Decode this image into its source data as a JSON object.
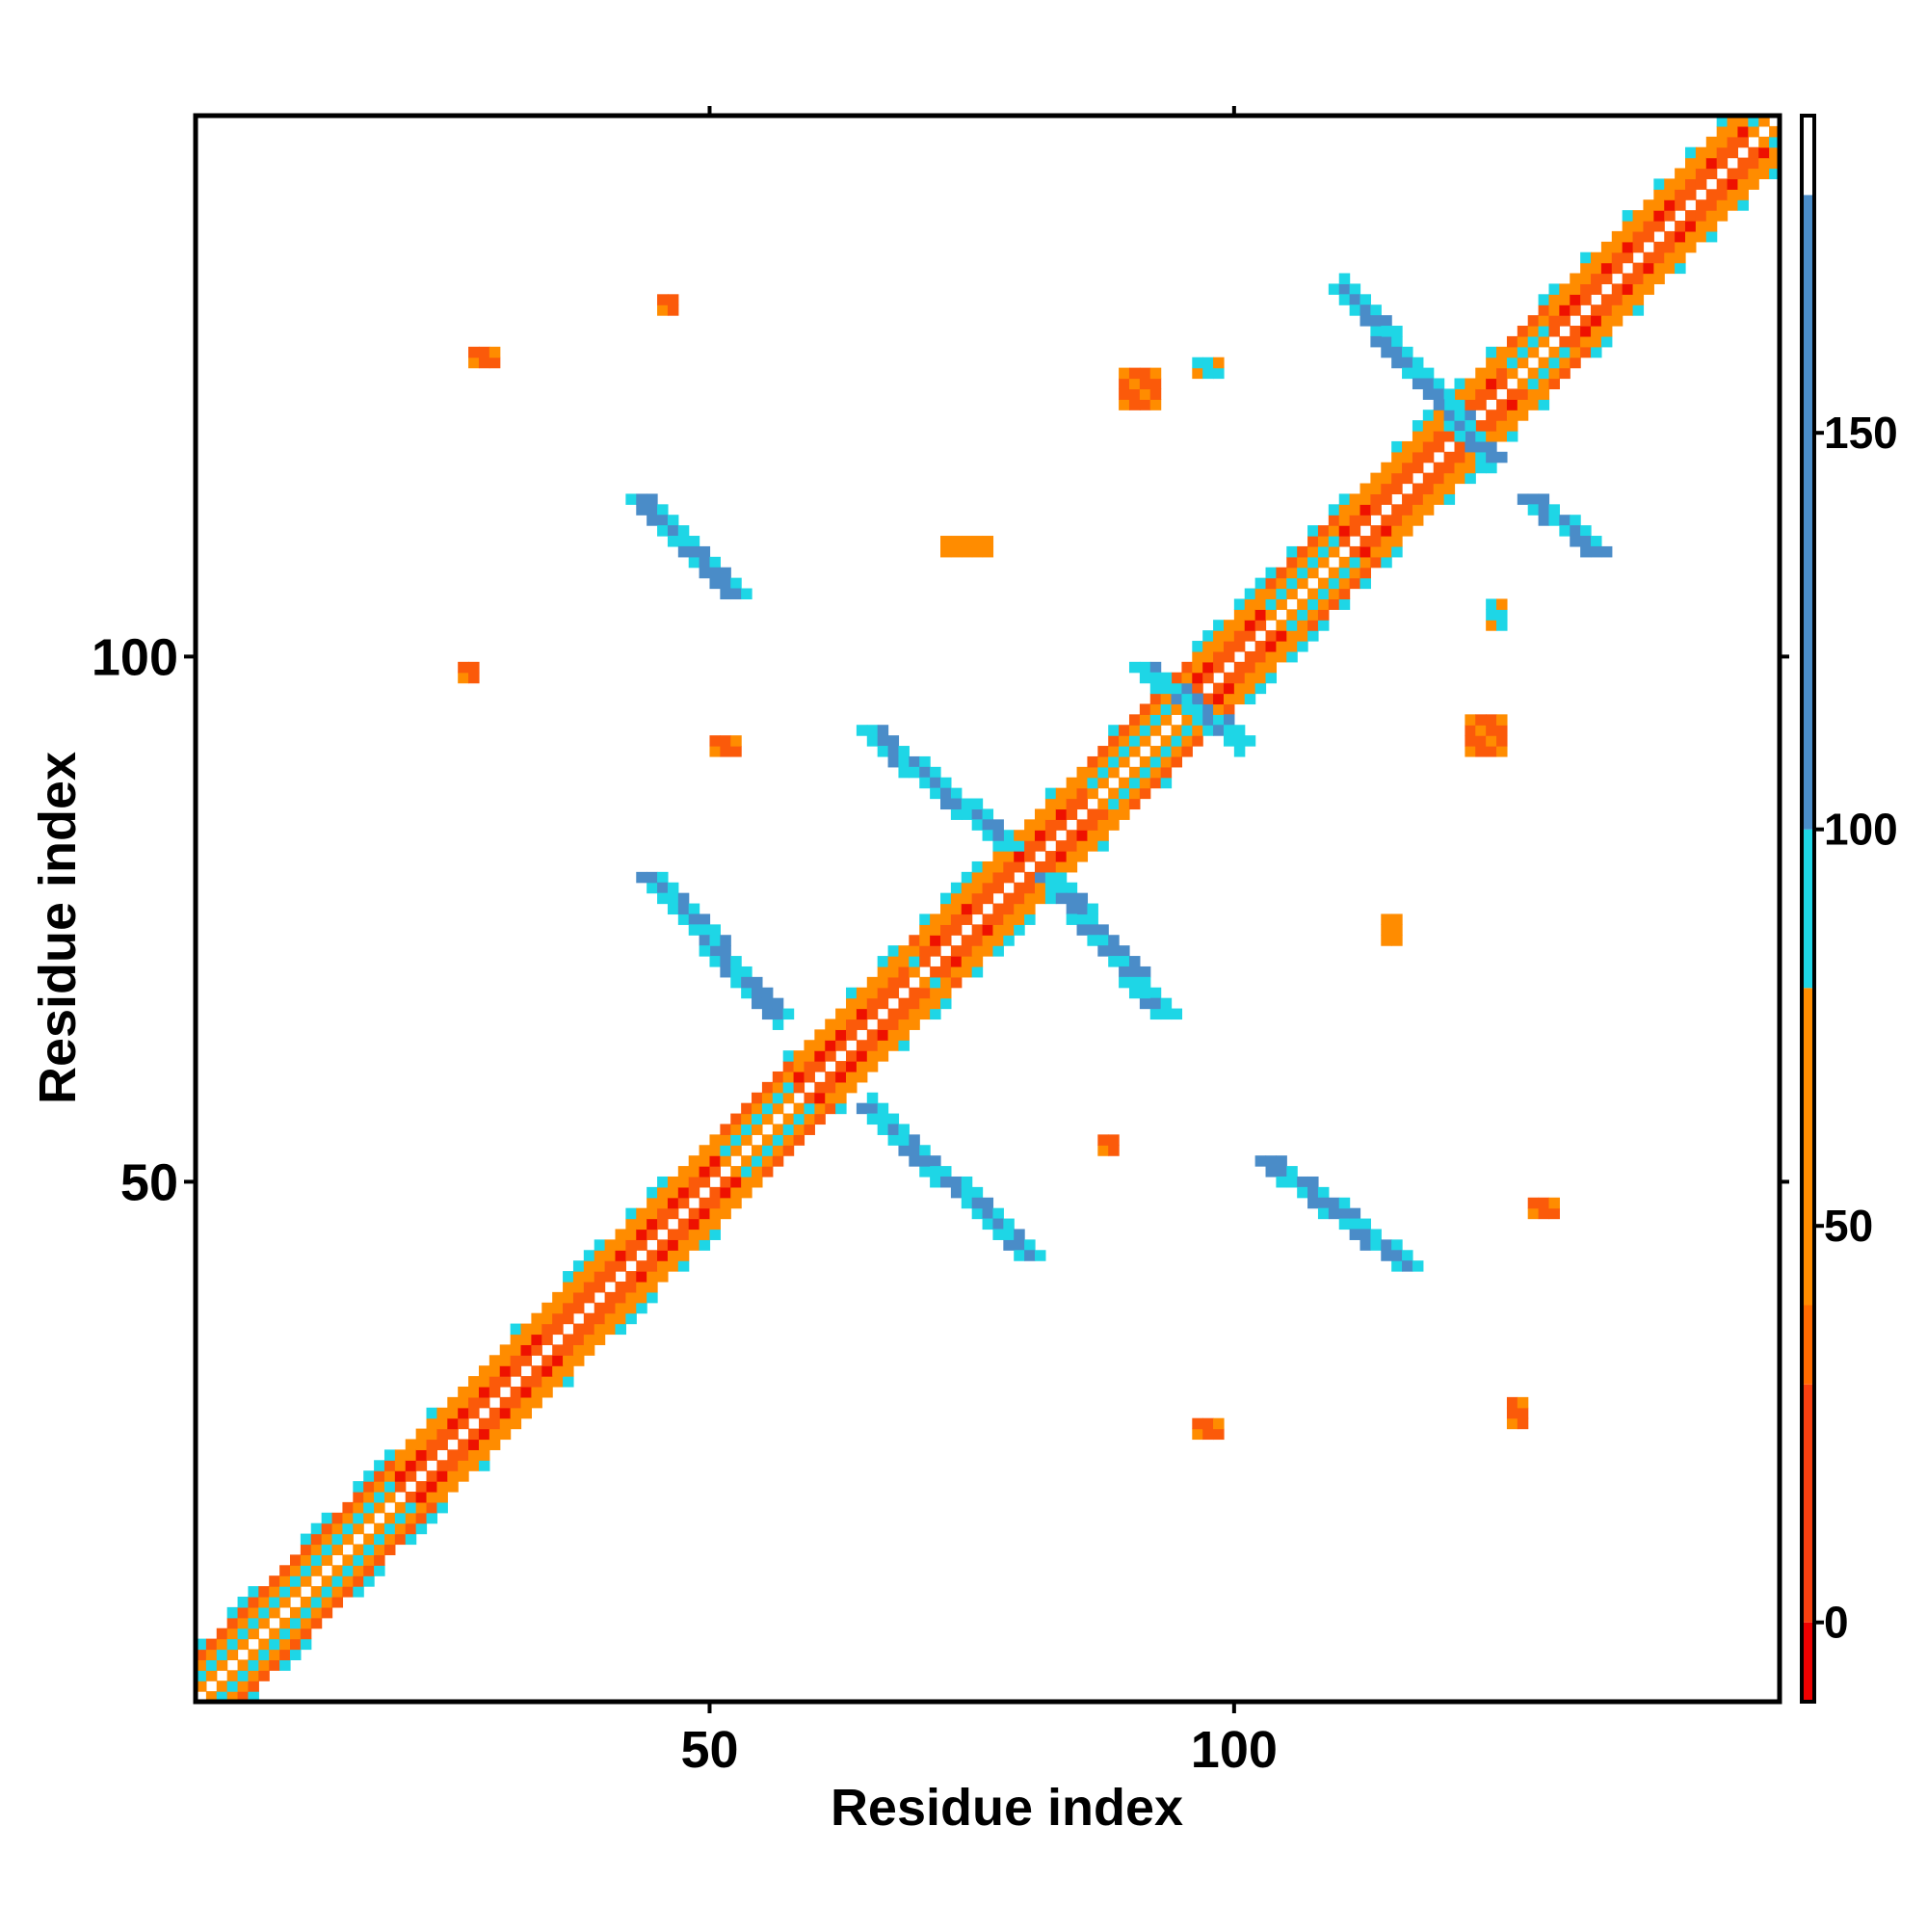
{
  "chart_data": {
    "type": "heatmap",
    "title": "",
    "xlabel": "Residue index",
    "ylabel": "Residue index",
    "n_residues": 151,
    "xlim": [
      1,
      151
    ],
    "ylim": [
      1,
      151
    ],
    "x_ticks": [
      50,
      100
    ],
    "y_ticks": [
      50,
      100
    ],
    "grid": false,
    "colorbar": {
      "range": [
        -10,
        190
      ],
      "ticks": [
        0,
        50,
        100,
        150
      ],
      "bands": [
        {
          "from": -10,
          "to": 0,
          "color": "#ee0000"
        },
        {
          "from": 0,
          "to": 30,
          "color": "#f84010"
        },
        {
          "from": 30,
          "to": 40,
          "color": "#ff6a00"
        },
        {
          "from": 40,
          "to": 80,
          "color": "#ff8c00"
        },
        {
          "from": 80,
          "to": 100,
          "color": "#1ed6e6"
        },
        {
          "from": 100,
          "to": 180,
          "color": "#4a8cc8"
        },
        {
          "from": 180,
          "to": 190,
          "color": "#ffffff"
        }
      ]
    },
    "palette": {
      "red": "#ee1100",
      "orange_red": "#fb5a0a",
      "orange": "#ff8c00",
      "cyan": "#1ed6e6",
      "steel_blue": "#4a8cc8"
    },
    "features": [
      {
        "kind": "diagonal_band",
        "from": 1,
        "to": 151,
        "width": 4
      },
      {
        "kind": "antiparallel_sheet",
        "x": [
          44,
          56
        ],
        "y": [
          79,
          66
        ],
        "color": "steel_blue"
      },
      {
        "kind": "antiparallel_sheet",
        "x": [
          65,
          78
        ],
        "y": [
          93,
          82
        ],
        "color": "steel_blue"
      },
      {
        "kind": "antiparallel_sheet",
        "x": [
          82,
          93
        ],
        "y": [
          79,
          66
        ],
        "color": "steel_blue"
      },
      {
        "kind": "antiparallel_sheet",
        "x": [
          65,
          80
        ],
        "y": [
          57,
          43
        ],
        "color": "steel_blue"
      },
      {
        "kind": "antiparallel_sheet",
        "x": [
          43,
          52
        ],
        "y": [
          115,
          106
        ],
        "color": "steel_blue"
      },
      {
        "kind": "antiparallel_sheet",
        "x": [
          103,
          116
        ],
        "y": [
          52,
          42
        ],
        "color": "steel_blue"
      },
      {
        "kind": "antiparallel_sheet",
        "x": [
          110,
          124
        ],
        "y": [
          135,
          119
        ],
        "color": "steel_blue"
      },
      {
        "kind": "antiparallel_sheet",
        "x": [
          128,
          134
        ],
        "y": [
          115,
          110
        ],
        "color": "steel_blue"
      },
      {
        "kind": "parallel_sheet",
        "x": [
          91,
          100
        ],
        "y": [
          99,
          92
        ],
        "color": "cyan"
      },
      {
        "kind": "patch",
        "x": 89,
        "y": 124,
        "w": 4,
        "h": 4,
        "color": "orange_red"
      },
      {
        "kind": "patch",
        "x": 122,
        "y": 91,
        "w": 4,
        "h": 4,
        "color": "orange_red"
      },
      {
        "kind": "patch",
        "x": 27,
        "y": 128,
        "w": 3,
        "h": 2,
        "color": "orange_red"
      },
      {
        "kind": "patch",
        "x": 26,
        "y": 98,
        "w": 2,
        "h": 2,
        "color": "orange_red"
      },
      {
        "kind": "patch",
        "x": 96,
        "y": 127,
        "w": 3,
        "h": 2,
        "color": "cyan"
      },
      {
        "kind": "patch",
        "x": 50,
        "y": 91,
        "w": 3,
        "h": 2,
        "color": "orange_red"
      },
      {
        "kind": "patch",
        "x": 87,
        "y": 53,
        "w": 2,
        "h": 2,
        "color": "orange_red"
      },
      {
        "kind": "patch",
        "x": 114,
        "y": 73,
        "w": 2,
        "h": 3,
        "color": "orange"
      },
      {
        "kind": "patch",
        "x": 72,
        "y": 110,
        "w": 5,
        "h": 2,
        "color": "orange"
      },
      {
        "kind": "patch",
        "x": 96,
        "y": 26,
        "w": 3,
        "h": 2,
        "color": "orange_red"
      },
      {
        "kind": "patch",
        "x": 126,
        "y": 27,
        "w": 2,
        "h": 3,
        "color": "orange_red"
      },
      {
        "kind": "patch",
        "x": 124,
        "y": 103,
        "w": 2,
        "h": 3,
        "color": "cyan"
      },
      {
        "kind": "patch",
        "x": 128,
        "y": 47,
        "w": 3,
        "h": 2,
        "color": "orange_red"
      },
      {
        "kind": "patch",
        "x": 45,
        "y": 133,
        "w": 2,
        "h": 2,
        "color": "orange_red"
      }
    ]
  }
}
